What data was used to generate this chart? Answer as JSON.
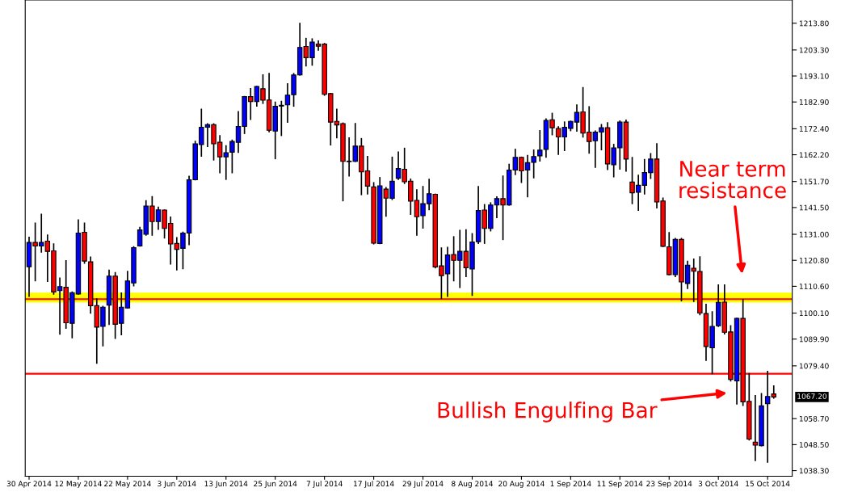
{
  "chart_data": {
    "type": "candlestick",
    "categories": [
      "30 Apr 2014",
      null,
      null,
      null,
      null,
      null,
      null,
      null,
      "12 May 2014",
      null,
      null,
      null,
      null,
      null,
      null,
      null,
      "22 May 2014",
      null,
      null,
      null,
      null,
      null,
      null,
      null,
      "3 Jun 2014",
      null,
      null,
      null,
      null,
      null,
      null,
      null,
      "13 Jun 2014",
      null,
      null,
      null,
      null,
      null,
      null,
      null,
      "25 Jun 2014",
      null,
      null,
      null,
      null,
      null,
      null,
      null,
      "7 Jul 2014",
      null,
      null,
      null,
      null,
      null,
      null,
      null,
      "17 Jul 2014",
      null,
      null,
      null,
      null,
      null,
      null,
      null,
      "29 Jul 2014",
      null,
      null,
      null,
      null,
      null,
      null,
      null,
      "8 Aug 2014",
      null,
      null,
      null,
      null,
      null,
      null,
      null,
      "20 Aug 2014",
      null,
      null,
      null,
      null,
      null,
      null,
      null,
      "1 Sep 2014",
      null,
      null,
      null,
      null,
      null,
      null,
      null,
      "11 Sep 2014",
      null,
      null,
      null,
      null,
      null,
      null,
      null,
      "23 Sep 2014",
      null,
      null,
      null,
      null,
      null,
      null,
      null,
      "3 Oct 2014",
      null,
      null,
      null,
      null,
      null,
      null,
      null,
      "15 Oct 2014",
      null
    ],
    "ohlc": [
      [
        1118.3,
        1129.8,
        1106.7,
        1127.8
      ],
      [
        1127.8,
        1135.3,
        1112.8,
        1126.4
      ],
      [
        1126.4,
        1138.8,
        1124.1,
        1127.8
      ],
      [
        1128.3,
        1130.7,
        1112.6,
        1124.3
      ],
      [
        1124.5,
        1127.2,
        1107.6,
        1108.4
      ],
      [
        1108.9,
        1113.8,
        1091.9,
        1110.5
      ],
      [
        1110.2,
        1120.6,
        1094.2,
        1096.3
      ],
      [
        1096.1,
        1108.3,
        1090.5,
        1108.1
      ],
      [
        1107.6,
        1136.6,
        1107.6,
        1131.5
      ],
      [
        1131.8,
        1135.3,
        1119.7,
        1120.5
      ],
      [
        1120.2,
        1122.0,
        1100.1,
        1103.0
      ],
      [
        1103.0,
        1105.6,
        1080.5,
        1094.6
      ],
      [
        1094.9,
        1102.7,
        1087.3,
        1102.4
      ],
      [
        1103.2,
        1116.9,
        1095.7,
        1114.6
      ],
      [
        1114.6,
        1115.9,
        1090.2,
        1095.7
      ],
      [
        1096.1,
        1107.9,
        1091.7,
        1102.4
      ],
      [
        1102.1,
        1116.4,
        1102.1,
        1112.7
      ],
      [
        1111.9,
        1126.1,
        1110.8,
        1125.8
      ],
      [
        1126.4,
        1133.7,
        1126.4,
        1132.7
      ],
      [
        1131.0,
        1144.1,
        1130.7,
        1142.1
      ],
      [
        1142.1,
        1145.7,
        1130.7,
        1136.0
      ],
      [
        1136.0,
        1141.6,
        1133.0,
        1140.6
      ],
      [
        1140.5,
        1140.5,
        1129.6,
        1133.3
      ],
      [
        1135.3,
        1137.7,
        1119.4,
        1127.2
      ],
      [
        1127.4,
        1129.6,
        1117.1,
        1125.1
      ],
      [
        1125.5,
        1131.8,
        1117.6,
        1131.5
      ],
      [
        1131.5,
        1153.7,
        1127.0,
        1152.4
      ],
      [
        1152.4,
        1167.4,
        1152.4,
        1166.5
      ],
      [
        1166.2,
        1180.0,
        1161.7,
        1173.0
      ],
      [
        1173.0,
        1174.3,
        1165.5,
        1174.0
      ],
      [
        1174.0,
        1174.3,
        1160.2,
        1166.5
      ],
      [
        1167.1,
        1169.6,
        1155.2,
        1161.4
      ],
      [
        1161.4,
        1165.7,
        1152.6,
        1163.0
      ],
      [
        1163.2,
        1167.9,
        1155.2,
        1167.4
      ],
      [
        1167.1,
        1179.1,
        1163.2,
        1173.3
      ],
      [
        1173.3,
        1185.0,
        1170.6,
        1185.0
      ],
      [
        1185.0,
        1188.1,
        1176.1,
        1183.1
      ],
      [
        1183.1,
        1189.0,
        1181.3,
        1189.0
      ],
      [
        1188.1,
        1193.5,
        1182.4,
        1183.6
      ],
      [
        1183.7,
        1194.0,
        1171.3,
        1171.8
      ],
      [
        1171.5,
        1182.8,
        1160.7,
        1181.2
      ],
      [
        1181.3,
        1183.1,
        1169.8,
        1181.6
      ],
      [
        1181.8,
        1190.0,
        1175.0,
        1185.6
      ],
      [
        1185.8,
        1194.0,
        1181.3,
        1193.5
      ],
      [
        1193.5,
        1213.7,
        1193.5,
        1204.3
      ],
      [
        1204.7,
        1207.8,
        1197.1,
        1200.3
      ],
      [
        1200.3,
        1207.6,
        1197.4,
        1206.4
      ],
      [
        1205.6,
        1206.8,
        1203.3,
        1204.8
      ],
      [
        1205.6,
        1205.8,
        1185.6,
        1185.9
      ],
      [
        1186.2,
        1186.2,
        1166.1,
        1175.0
      ],
      [
        1175.3,
        1180.0,
        1168.9,
        1173.9
      ],
      [
        1174.4,
        1174.6,
        1144.2,
        1159.6
      ],
      [
        1159.5,
        1168.8,
        1153.9,
        1159.7
      ],
      [
        1159.6,
        1174.4,
        1159.6,
        1165.6
      ],
      [
        1165.6,
        1168.5,
        1146.6,
        1155.5
      ],
      [
        1155.9,
        1161.5,
        1146.9,
        1149.9
      ],
      [
        1149.6,
        1151.2,
        1127.3,
        1127.5
      ],
      [
        1127.4,
        1153.2,
        1127.4,
        1150.0
      ],
      [
        1148.7,
        1149.3,
        1138.2,
        1145.2
      ],
      [
        1145.1,
        1161.2,
        1144.7,
        1151.8
      ],
      [
        1153.0,
        1163.2,
        1152.6,
        1156.8
      ],
      [
        1156.5,
        1164.7,
        1151.0,
        1151.6
      ],
      [
        1151.8,
        1152.6,
        1138.9,
        1144.0
      ],
      [
        1144.3,
        1148.4,
        1130.7,
        1137.9
      ],
      [
        1138.3,
        1149.7,
        1133.5,
        1143.0
      ],
      [
        1143.0,
        1152.5,
        1140.7,
        1146.9
      ],
      [
        1146.7,
        1146.7,
        1117.9,
        1118.2
      ],
      [
        1118.6,
        1125.6,
        1105.9,
        1114.8
      ],
      [
        1115.5,
        1125.8,
        1106.7,
        1122.9
      ],
      [
        1123.1,
        1130.0,
        1112.8,
        1120.8
      ],
      [
        1120.8,
        1132.5,
        1110.2,
        1124.3
      ],
      [
        1124.3,
        1132.7,
        1114.5,
        1117.9
      ],
      [
        1117.4,
        1131.2,
        1107.1,
        1128.0
      ],
      [
        1128.1,
        1149.7,
        1127.5,
        1140.3
      ],
      [
        1140.5,
        1142.6,
        1127.5,
        1133.3
      ],
      [
        1133.3,
        1143.3,
        1132.4,
        1142.5
      ],
      [
        1142.5,
        1145.6,
        1137.6,
        1145.0
      ],
      [
        1145.0,
        1153.8,
        1129.0,
        1142.5
      ],
      [
        1142.5,
        1158.4,
        1142.5,
        1156.2
      ],
      [
        1156.2,
        1164.3,
        1154.5,
        1161.2
      ],
      [
        1161.2,
        1161.2,
        1151.4,
        1155.9
      ],
      [
        1156.2,
        1161.9,
        1145.8,
        1159.1
      ],
      [
        1159.2,
        1164.0,
        1153.2,
        1161.5
      ],
      [
        1161.8,
        1171.6,
        1159.8,
        1164.0
      ],
      [
        1164.3,
        1176.2,
        1161.3,
        1175.7
      ],
      [
        1175.9,
        1178.4,
        1170.1,
        1172.8
      ],
      [
        1172.5,
        1173.1,
        1162.4,
        1169.2
      ],
      [
        1169.2,
        1175.0,
        1163.9,
        1173.0
      ],
      [
        1172.5,
        1175.3,
        1171.7,
        1175.3
      ],
      [
        1175.0,
        1181.7,
        1171.5,
        1178.8
      ],
      [
        1179.0,
        1188.5,
        1169.2,
        1170.7
      ],
      [
        1171.1,
        1181.0,
        1162.9,
        1167.4
      ],
      [
        1167.7,
        1171.5,
        1157.3,
        1171.1
      ],
      [
        1171.1,
        1174.0,
        1164.2,
        1172.8
      ],
      [
        1172.8,
        1174.7,
        1156.5,
        1158.6
      ],
      [
        1158.3,
        1166.2,
        1153.6,
        1164.9
      ],
      [
        1164.9,
        1175.4,
        1156.6,
        1175.0
      ],
      [
        1175.0,
        1175.7,
        1155.8,
        1160.5
      ],
      [
        1151.5,
        1161.1,
        1143.1,
        1147.3
      ],
      [
        1147.5,
        1154.1,
        1140.5,
        1150.2
      ],
      [
        1150.2,
        1160.3,
        1146.9,
        1155.2
      ],
      [
        1155.2,
        1162.6,
        1153.0,
        1160.5
      ],
      [
        1160.5,
        1166.5,
        1141.4,
        1143.7
      ],
      [
        1144.1,
        1145.2,
        1126.3,
        1126.3
      ],
      [
        1126.1,
        1131.6,
        1115.2,
        1115.2
      ],
      [
        1115.2,
        1129.3,
        1114.5,
        1129.0
      ],
      [
        1129.0,
        1129.3,
        1105.0,
        1112.3
      ],
      [
        1111.7,
        1120.4,
        1109.8,
        1118.9
      ],
      [
        1117.7,
        1121.2,
        1104.7,
        1116.5
      ],
      [
        1116.4,
        1122.1,
        1099.5,
        1100.1
      ],
      [
        1099.9,
        1103.5,
        1081.6,
        1087.0
      ],
      [
        1086.5,
        1100.6,
        1076.4,
        1094.9
      ],
      [
        1095.1,
        1111.1,
        1094.9,
        1104.3
      ],
      [
        1104.4,
        1111.1,
        1092.0,
        1092.6
      ],
      [
        1092.7,
        1095.1,
        1073.5,
        1074.1
      ],
      [
        1073.5,
        1098.0,
        1064.5,
        1098.0
      ],
      [
        1098.0,
        1105.3,
        1063.9,
        1065.3
      ],
      [
        1065.5,
        1076.3,
        1050.4,
        1050.7
      ],
      [
        1049.5,
        1067.7,
        1042.3,
        1048.3
      ],
      [
        1048.1,
        1068.5,
        1048.1,
        1063.7
      ],
      [
        1064.6,
        1077.2,
        1041.7,
        1067.4
      ],
      [
        1068.4,
        1071.5,
        1066.8,
        1067.2
      ]
    ],
    "colors": [
      "#0000ff",
      "#ff0000",
      "#0000ff",
      "#ff0000",
      "#ff0000",
      "#0000ff",
      "#ff0000",
      "#0000ff",
      "#0000ff",
      "#ff0000",
      "#ff0000",
      "#ff0000",
      "#0000ff",
      "#0000ff",
      "#ff0000",
      "#0000ff",
      "#0000ff",
      "#0000ff",
      "#0000ff",
      "#0000ff",
      "#ff0000",
      "#0000ff",
      "#ff0000",
      "#ff0000",
      "#ff0000",
      "#0000ff",
      "#0000ff",
      "#0000ff",
      "#0000ff",
      "#0000ff",
      "#ff0000",
      "#ff0000",
      "#0000ff",
      "#0000ff",
      "#0000ff",
      "#0000ff",
      "#ff0000",
      "#0000ff",
      "#ff0000",
      "#ff0000",
      "#0000ff",
      "#0000ff",
      "#0000ff",
      "#0000ff",
      "#0000ff",
      "#ff0000",
      "#0000ff",
      "#ff0000",
      "#ff0000",
      "#ff0000",
      "#ff0000",
      "#ff0000",
      "#0000ff",
      "#0000ff",
      "#ff0000",
      "#ff0000",
      "#ff0000",
      "#0000ff",
      "#ff0000",
      "#0000ff",
      "#0000ff",
      "#ff0000",
      "#ff0000",
      "#ff0000",
      "#0000ff",
      "#0000ff",
      "#ff0000",
      "#ff0000",
      "#0000ff",
      "#ff0000",
      "#0000ff",
      "#ff0000",
      "#0000ff",
      "#0000ff",
      "#ff0000",
      "#0000ff",
      "#0000ff",
      "#ff0000",
      "#0000ff",
      "#0000ff",
      "#ff0000",
      "#0000ff",
      "#0000ff",
      "#0000ff",
      "#0000ff",
      "#ff0000",
      "#ff0000",
      "#0000ff",
      "#0000ff",
      "#0000ff",
      "#ff0000",
      "#ff0000",
      "#0000ff",
      "#0000ff",
      "#ff0000",
      "#0000ff",
      "#0000ff",
      "#ff0000",
      "#ff0000",
      "#0000ff",
      "#0000ff",
      "#0000ff",
      "#ff0000",
      "#ff0000",
      "#ff0000",
      "#0000ff",
      "#ff0000",
      "#0000ff",
      "#ff0000",
      "#ff0000",
      "#ff0000",
      "#0000ff",
      "#0000ff",
      "#ff0000",
      "#ff0000",
      "#0000ff",
      "#ff0000",
      "#ff0000",
      "#ff0000",
      "#0000ff",
      "#0000ff",
      "#ff0000"
    ],
    "ylim": [
      1036.1,
      1222.9
    ],
    "yticks": [
      {
        "value": 1213.8,
        "label": "1213.80"
      },
      {
        "value": 1203.3,
        "label": "1203.30"
      },
      {
        "value": 1193.1,
        "label": "1193.10"
      },
      {
        "value": 1182.9,
        "label": "1182.90"
      },
      {
        "value": 1172.4,
        "label": "1172.40"
      },
      {
        "value": 1162.2,
        "label": "1162.20"
      },
      {
        "value": 1151.7,
        "label": "1151.70"
      },
      {
        "value": 1141.5,
        "label": "1141.50"
      },
      {
        "value": 1131.0,
        "label": "1131.00"
      },
      {
        "value": 1120.8,
        "label": "1120.80"
      },
      {
        "value": 1110.6,
        "label": "1110.60"
      },
      {
        "value": 1100.1,
        "label": "1100.10"
      },
      {
        "value": 1089.9,
        "label": "1089.90"
      },
      {
        "value": 1079.4,
        "label": "1079.40"
      },
      {
        "value": 1058.7,
        "label": "1058.70"
      },
      {
        "value": 1048.5,
        "label": "1048.50"
      },
      {
        "value": 1038.3,
        "label": "1038.30"
      }
    ],
    "ref_lines": [
      {
        "axis": "y",
        "value": 1105.6,
        "color": "#ff0000"
      },
      {
        "axis": "y",
        "value": 1076.3,
        "color": "#ff0000"
      }
    ],
    "bands": [
      {
        "axis": "y",
        "from": 1104.2,
        "to": 1108.1,
        "color": "#ffff00"
      }
    ],
    "annotations": [
      "1067.20",
      "Near term\nresistance",
      "Bullish Engulfing Bar"
    ],
    "grid": false,
    "legend": false
  }
}
